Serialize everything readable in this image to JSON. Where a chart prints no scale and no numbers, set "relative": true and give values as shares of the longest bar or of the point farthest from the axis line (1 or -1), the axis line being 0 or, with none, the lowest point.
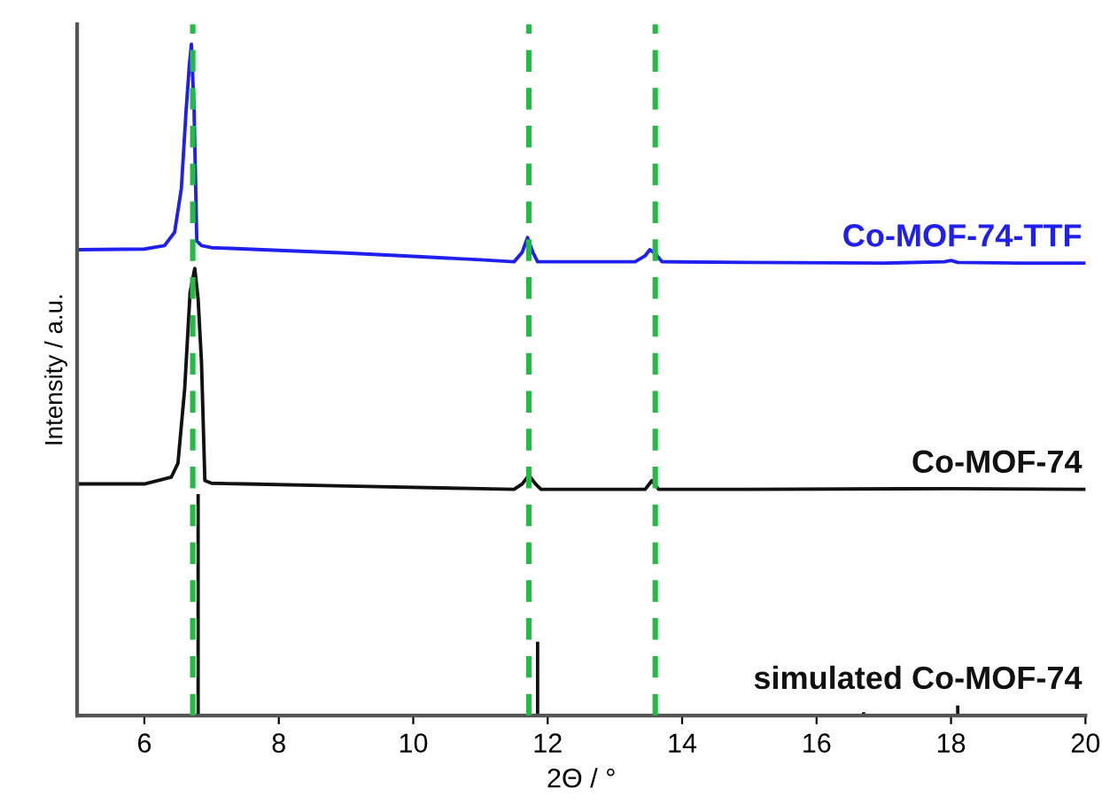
{
  "chart_data": {
    "type": "line",
    "relative": true,
    "xlabel": "2Θ / °",
    "ylabel": "Intensity / a.u.",
    "xlim": [
      5,
      20
    ],
    "xticks": [
      6,
      8,
      10,
      12,
      14,
      16,
      18,
      20
    ],
    "tick_labels": "x",
    "grid": false,
    "legend": false,
    "series": [
      {
        "name": "Co-MOF-74-TTF",
        "color": "#2020ee",
        "x": [
          5,
          6,
          6.3,
          6.45,
          6.55,
          6.62,
          6.67,
          6.7,
          6.74,
          6.78,
          6.85,
          7,
          8,
          9,
          10,
          11,
          11.5,
          11.62,
          11.7,
          11.78,
          11.85,
          12.5,
          13.3,
          13.45,
          13.52,
          13.6,
          13.7,
          15,
          17,
          17.9,
          18,
          18.1,
          19,
          20
        ],
        "values": [
          0.694,
          0.695,
          0.7,
          0.72,
          0.785,
          0.9,
          0.97,
          1.0,
          0.9,
          0.707,
          0.7,
          0.697,
          0.693,
          0.689,
          0.684,
          0.679,
          0.676,
          0.69,
          0.712,
          0.69,
          0.676,
          0.676,
          0.676,
          0.685,
          0.694,
          0.688,
          0.676,
          0.675,
          0.674,
          0.676,
          0.678,
          0.675,
          0.674,
          0.674
        ]
      },
      {
        "name": "Co-MOF-74",
        "color": "#111111",
        "x": [
          5,
          6,
          6.4,
          6.5,
          6.6,
          6.68,
          6.75,
          6.8,
          6.85,
          6.9,
          7,
          7.5,
          9,
          11,
          11.5,
          11.62,
          11.72,
          11.82,
          11.9,
          13,
          13.45,
          13.55,
          13.65,
          15,
          18,
          20
        ],
        "values": [
          0.345,
          0.345,
          0.355,
          0.376,
          0.487,
          0.63,
          0.666,
          0.62,
          0.526,
          0.35,
          0.346,
          0.345,
          0.342,
          0.338,
          0.337,
          0.345,
          0.358,
          0.345,
          0.337,
          0.337,
          0.337,
          0.35,
          0.337,
          0.337,
          0.338,
          0.337
        ]
      },
      {
        "name": "simulated Co-MOF-74",
        "type": "bar",
        "color": "#111111",
        "x": [
          6.8,
          11.85,
          16.7,
          18.1
        ],
        "values": [
          0.33,
          0.11,
          0.005,
          0.015
        ]
      }
    ],
    "ref_lines": [
      {
        "axis": "x",
        "value": 6.72,
        "color": "#22bb44",
        "line_style": "dashed"
      },
      {
        "axis": "x",
        "value": 11.72,
        "color": "#22bb44",
        "line_style": "dashed"
      },
      {
        "axis": "x",
        "value": 13.6,
        "color": "#22bb44",
        "line_style": "dashed"
      }
    ]
  }
}
